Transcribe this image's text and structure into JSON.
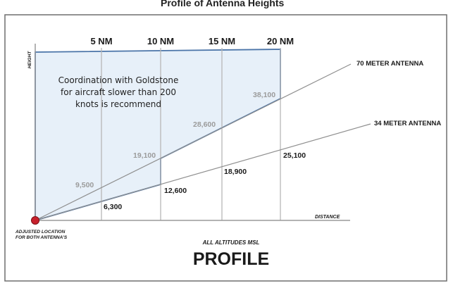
{
  "header_partial_text": "Profile of Antenna Heights",
  "distance_ticks": [
    "5 NM",
    "10 NM",
    "15 NM",
    "20 NM"
  ],
  "axis": {
    "height_label": "HEIGHT",
    "distance_label": "DISTANCE"
  },
  "antennas": {
    "seventy": "70 METER ANTENNA",
    "thirtyfour": "34 METER ANTENNA"
  },
  "origin_label": {
    "line1": "ADJUSTED LOCATION",
    "line2": "FOR BOTH ANTENNA'S"
  },
  "note": {
    "line1": "Coordination with Goldstone",
    "line2": "for aircraft slower than 200",
    "line3": "knots is recommend"
  },
  "altitudes_70m": [
    "9,500",
    "19,100",
    "28,600",
    "38,100"
  ],
  "altitudes_34m": [
    "6,300",
    "12,600",
    "18,900",
    "25,100"
  ],
  "footer": {
    "subtitle": "ALL ALTITUDES MSL",
    "title": "PROFILE"
  },
  "colors": {
    "shade_fill": "#e7f0f9",
    "shade_stroke": "#4a74a8",
    "grid": "#b7b7b7",
    "line": "#8f8f8f",
    "origin_dot": "#c8202c"
  }
}
